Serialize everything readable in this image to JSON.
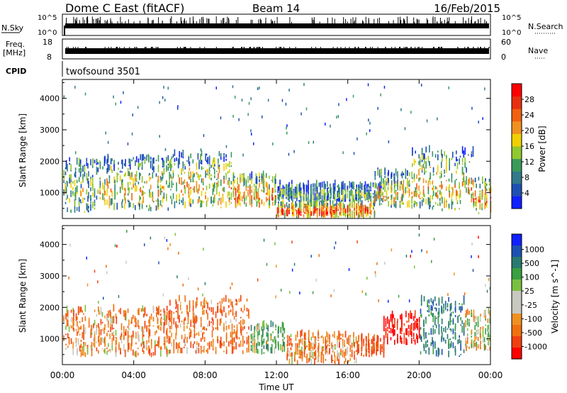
{
  "header": {
    "title": "Dome C East (fitACF)",
    "beam": "Beam 14",
    "date": "16/Feb/2015"
  },
  "top_panels": {
    "nsky_label": "N.Sky",
    "nsky_ticks": [
      "10^5",
      "10^0"
    ],
    "nsky_right_ticks": [
      "10^5",
      "10^0"
    ],
    "nsearch_label": "N.Search",
    "freq_label_line1": "Freq.",
    "freq_label_line2": "[MHz]",
    "freq_ticks": [
      "18",
      "8"
    ],
    "nave_ticks": [
      "60",
      "0"
    ],
    "nave_label": "Nave",
    "cpid_label": "CPID",
    "cpid_value": "twofsound 3501"
  },
  "colors": {
    "power_scale": [
      "#1020ff",
      "#1e50b4",
      "#32798a",
      "#3a9a5a",
      "#90c830",
      "#f0d000",
      "#f09020",
      "#f06010",
      "#e83010",
      "#ff0000"
    ],
    "velocity_scale": [
      "#ff0000",
      "#f04010",
      "#f07010",
      "#f09020",
      "#c8c8c0",
      "#c8c8c0",
      "#7ac040",
      "#3aa040",
      "#2a7a70",
      "#1e50b4",
      "#1020ff"
    ]
  },
  "chart_data": [
    {
      "type": "heatmap",
      "name_hint": "power panel",
      "ylabel": "Slant Range [km]",
      "xlabel": "",
      "x_ticks": [
        "00:00",
        "04:00",
        "08:00",
        "12:00",
        "16:00",
        "20:00",
        "00:00"
      ],
      "x_range_hours": [
        0,
        24
      ],
      "y_ticks": [
        1000,
        2000,
        3000,
        4000
      ],
      "ylim": [
        180,
        4600
      ],
      "colorbar_label": "Power [dB]",
      "colorbar_ticks": [
        4,
        8,
        12,
        16,
        20,
        24,
        28
      ],
      "colorbar_range": [
        0,
        32
      ],
      "echo_regions": [
        {
          "t": [
            0.0,
            2.0
          ],
          "r": [
            350,
            2000
          ],
          "level": 0.45
        },
        {
          "t": [
            2.0,
            6.0
          ],
          "r": [
            400,
            2100
          ],
          "level": 0.55
        },
        {
          "t": [
            6.0,
            9.5
          ],
          "r": [
            500,
            2200
          ],
          "level": 0.6
        },
        {
          "t": [
            9.5,
            12.0
          ],
          "r": [
            500,
            1500
          ],
          "level": 0.7
        },
        {
          "t": [
            12.0,
            17.5
          ],
          "r": [
            180,
            600
          ],
          "level": 0.85
        },
        {
          "t": [
            12.0,
            18.0
          ],
          "r": [
            700,
            1200
          ],
          "level": 0.35
        },
        {
          "t": [
            17.5,
            19.5
          ],
          "r": [
            500,
            1600
          ],
          "level": 0.6
        },
        {
          "t": [
            19.5,
            23.0
          ],
          "r": [
            400,
            2300
          ],
          "level": 0.6
        },
        {
          "t": [
            23.0,
            24.0
          ],
          "r": [
            300,
            1400
          ],
          "level": 0.7
        }
      ]
    },
    {
      "type": "heatmap",
      "name_hint": "velocity panel",
      "ylabel": "Slant Range [km]",
      "xlabel": "Time UT",
      "x_ticks": [
        "00:00",
        "04:00",
        "08:00",
        "12:00",
        "16:00",
        "20:00",
        "00:00"
      ],
      "x_range_hours": [
        0,
        24
      ],
      "y_ticks": [
        1000,
        2000,
        3000,
        4000
      ],
      "ylim": [
        180,
        4600
      ],
      "colorbar_label": "Velocity [m s^-1]",
      "colorbar_ticks": [
        "1000",
        "500",
        "100",
        "25",
        "-25",
        "-100",
        "-500",
        "-1000"
      ],
      "echo_regions": [
        {
          "t": [
            0.0,
            6.0
          ],
          "r": [
            400,
            1900
          ],
          "velocity": -150
        },
        {
          "t": [
            6.0,
            10.5
          ],
          "r": [
            500,
            2200
          ],
          "velocity": -200
        },
        {
          "t": [
            10.5,
            12.5
          ],
          "r": [
            500,
            1400
          ],
          "velocity": 150
        },
        {
          "t": [
            12.5,
            16.5
          ],
          "r": [
            180,
            1100
          ],
          "velocity": -150
        },
        {
          "t": [
            16.5,
            18.0
          ],
          "r": [
            400,
            1000
          ],
          "velocity": -300
        },
        {
          "t": [
            18.0,
            20.0
          ],
          "r": [
            800,
            1700
          ],
          "velocity": -600
        },
        {
          "t": [
            20.0,
            22.5
          ],
          "r": [
            400,
            2200
          ],
          "velocity": 400
        },
        {
          "t": [
            22.5,
            24.0
          ],
          "r": [
            600,
            1800
          ],
          "velocity": 0
        }
      ]
    }
  ]
}
